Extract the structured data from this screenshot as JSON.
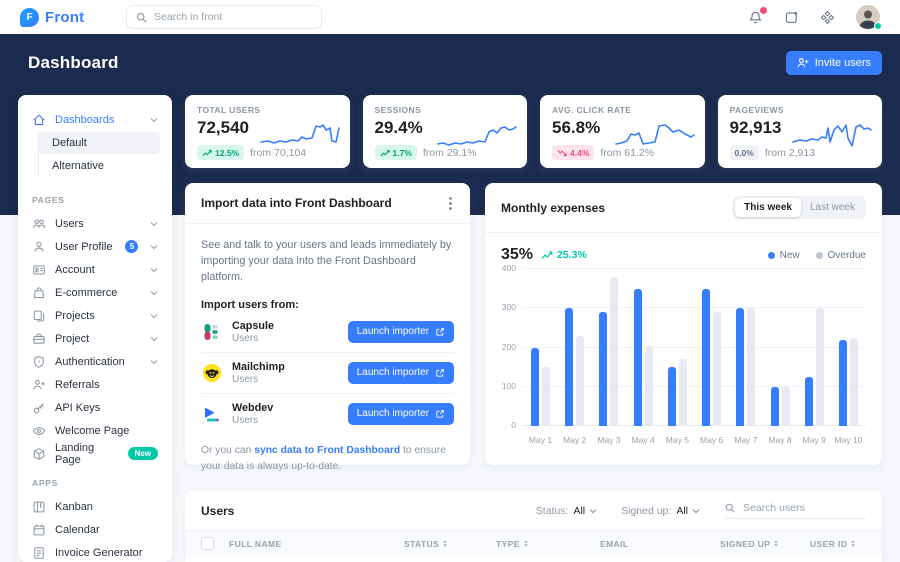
{
  "colors": {
    "accent": "#377dff",
    "navy": "#1b2a4f",
    "success": "#00c9a7",
    "danger": "#ed4c78",
    "bar_new": "#377dff",
    "bar_overdue": "#e7eaf3",
    "legend_overdue_dot": "#bdc5d1"
  },
  "navbar": {
    "brand": "Front",
    "brand_initial": "F",
    "search_placeholder": "Search in front"
  },
  "header": {
    "title": "Dashboard",
    "invite_label": "Invite users"
  },
  "sidebar": {
    "sections": [
      {
        "header": null,
        "items": [
          {
            "label": "Dashboards",
            "icon": "home",
            "chevron": true,
            "active": true,
            "children": [
              "Default",
              "Alternative"
            ],
            "active_child": "Default"
          }
        ]
      },
      {
        "header": "PAGES",
        "items": [
          {
            "label": "Users",
            "icon": "users",
            "chevron": true
          },
          {
            "label": "User Profile",
            "icon": "person",
            "chevron": true,
            "badge": "5"
          },
          {
            "label": "Account",
            "icon": "id-card",
            "chevron": true
          },
          {
            "label": "E-commerce",
            "icon": "bag",
            "chevron": true
          },
          {
            "label": "Projects",
            "icon": "duplicate",
            "chevron": true
          },
          {
            "label": "Project",
            "icon": "briefcase",
            "chevron": true
          },
          {
            "label": "Authentication",
            "icon": "shield",
            "chevron": true
          },
          {
            "label": "Referrals",
            "icon": "person-plus"
          },
          {
            "label": "API Keys",
            "icon": "key"
          },
          {
            "label": "Welcome Page",
            "icon": "eye"
          },
          {
            "label": "Landing Page",
            "icon": "box",
            "tag": "New"
          }
        ]
      },
      {
        "header": "APPS",
        "items": [
          {
            "label": "Kanban",
            "icon": "kanban"
          },
          {
            "label": "Calendar",
            "icon": "calendar"
          },
          {
            "label": "Invoice Generator",
            "icon": "invoice"
          }
        ]
      }
    ]
  },
  "stats": [
    {
      "label": "TOTAL USERS",
      "value": "72,540",
      "badge": "12.5%",
      "trend": "up",
      "from": "from 70,104"
    },
    {
      "label": "SESSIONS",
      "value": "29.4%",
      "badge": "1.7%",
      "trend": "up",
      "from": "from 29.1%"
    },
    {
      "label": "AVG. CLICK RATE",
      "value": "56.8%",
      "badge": "4.4%",
      "trend": "down",
      "from": "from 61.2%"
    },
    {
      "label": "PAGEVIEWS",
      "value": "92,913",
      "badge": "0.0%",
      "trend": "neutral",
      "from": "from 2,913"
    }
  ],
  "import_card": {
    "title": "Import data into Front Dashboard",
    "description": "See and talk to your users and leads immediately by importing your data into the Front Dashboard platform.",
    "subheading": "Import users from:",
    "items": [
      {
        "name": "Capsule",
        "type": "Users",
        "button": "Launch importer",
        "logo": "capsule"
      },
      {
        "name": "Mailchimp",
        "type": "Users",
        "button": "Launch importer",
        "logo": "mailchimp"
      },
      {
        "name": "Webdev",
        "type": "Users",
        "button": "Launch importer",
        "logo": "webdev"
      }
    ],
    "footer_prefix": "Or you can ",
    "footer_link": "sync data to Front Dashboard",
    "footer_suffix": " to ensure your data is always up-to-date."
  },
  "expenses_card": {
    "title": "Monthly expenses",
    "toggle": [
      "This week",
      "Last week"
    ],
    "active_toggle": 0,
    "percent": "35%",
    "change": "25.3%",
    "legend": [
      {
        "label": "New",
        "color": "#377dff"
      },
      {
        "label": "Overdue",
        "color": "#bdc5d1"
      }
    ]
  },
  "chart_data": {
    "type": "bar",
    "title": "Monthly expenses",
    "categories": [
      "May 1",
      "May 2",
      "May 3",
      "May 4",
      "May 5",
      "May 6",
      "May 7",
      "May 8",
      "May 9",
      "May 10"
    ],
    "series": [
      {
        "name": "New",
        "values": [
          200,
          300,
          290,
          350,
          150,
          350,
          300,
          100,
          125,
          220
        ]
      },
      {
        "name": "Overdue",
        "values": [
          150,
          230,
          380,
          205,
          170,
          290,
          300,
          100,
          300,
          225
        ]
      }
    ],
    "xlabel": "",
    "ylabel": "",
    "ylim": [
      0,
      400
    ],
    "yticks": [
      0,
      100,
      200,
      300,
      400
    ],
    "grid": "horizontal",
    "legend_position": "top-right"
  },
  "users_card": {
    "title": "Users",
    "filters": {
      "status_label": "Status:",
      "status_value": "All",
      "signedup_label": "Signed up:",
      "signedup_value": "All",
      "search_placeholder": "Search users"
    },
    "columns": [
      {
        "label": "FULL NAME",
        "sortable": false
      },
      {
        "label": "STATUS",
        "sortable": true
      },
      {
        "label": "TYPE",
        "sortable": true
      },
      {
        "label": "EMAIL",
        "sortable": false
      },
      {
        "label": "SIGNED UP",
        "sortable": true
      },
      {
        "label": "USER ID",
        "sortable": true
      }
    ]
  }
}
